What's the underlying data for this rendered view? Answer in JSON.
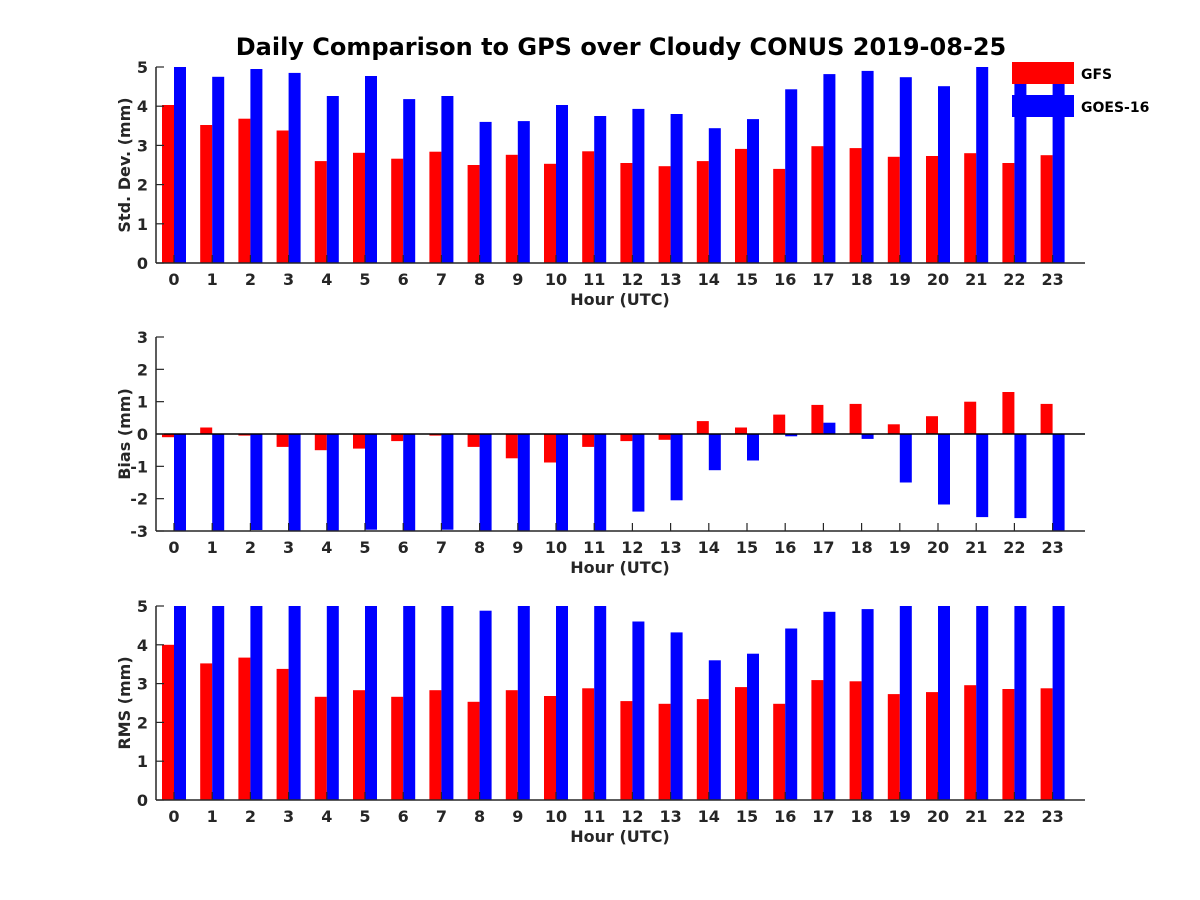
{
  "title": "Daily Comparison to GPS over Cloudy CONUS 2019-08-25",
  "colors": {
    "GFS": "#ff0000",
    "GOES-16": "#0000ff",
    "axis": "#262626"
  },
  "legend": {
    "placement": "top-right",
    "entries": [
      "GFS",
      "GOES-16"
    ]
  },
  "chart_data": [
    {
      "type": "bar",
      "title": "",
      "xlabel": "Hour (UTC)",
      "ylabel": "Std. Dev. (mm)",
      "ylim": [
        0,
        5
      ],
      "yticks": [
        0,
        1,
        2,
        3,
        4,
        5
      ],
      "categories": [
        "0",
        "1",
        "2",
        "3",
        "4",
        "5",
        "6",
        "7",
        "8",
        "9",
        "10",
        "11",
        "12",
        "13",
        "14",
        "15",
        "16",
        "17",
        "18",
        "19",
        "20",
        "21",
        "22",
        "23"
      ],
      "series": [
        {
          "name": "GFS",
          "values": [
            4.03,
            3.52,
            3.68,
            3.38,
            2.6,
            2.81,
            2.66,
            2.84,
            2.5,
            2.76,
            2.53,
            2.85,
            2.55,
            2.47,
            2.6,
            2.91,
            2.4,
            2.98,
            2.93,
            2.71,
            2.73,
            2.8,
            2.55,
            2.75
          ]
        },
        {
          "name": "GOES-16",
          "values": [
            5.0,
            4.75,
            4.95,
            4.85,
            4.26,
            4.77,
            4.18,
            4.26,
            3.6,
            3.62,
            4.03,
            3.75,
            3.93,
            3.8,
            3.44,
            3.67,
            4.43,
            4.82,
            4.9,
            4.74,
            4.51,
            5.0,
            4.58,
            4.6
          ]
        }
      ]
    },
    {
      "type": "bar",
      "title": "",
      "xlabel": "Hour (UTC)",
      "ylabel": "Bias (mm)",
      "ylim": [
        -3,
        3
      ],
      "yticks": [
        -3,
        -2,
        -1,
        0,
        1,
        2,
        3
      ],
      "categories": [
        "0",
        "1",
        "2",
        "3",
        "4",
        "5",
        "6",
        "7",
        "8",
        "9",
        "10",
        "11",
        "12",
        "13",
        "14",
        "15",
        "16",
        "17",
        "18",
        "19",
        "20",
        "21",
        "22",
        "23"
      ],
      "series": [
        {
          "name": "GFS",
          "values": [
            -0.1,
            0.2,
            -0.05,
            -0.4,
            -0.5,
            -0.45,
            -0.22,
            -0.05,
            -0.4,
            -0.75,
            -0.88,
            -0.4,
            -0.22,
            -0.18,
            0.4,
            0.2,
            0.6,
            0.9,
            0.93,
            0.3,
            0.55,
            1.0,
            1.3,
            0.93
          ]
        },
        {
          "name": "GOES-16",
          "values": [
            -3.0,
            -3.0,
            -2.97,
            -3.0,
            -3.0,
            -2.96,
            -3.0,
            -2.96,
            -3.0,
            -3.0,
            -3.0,
            -3.0,
            -2.4,
            -2.05,
            -1.12,
            -0.82,
            -0.07,
            0.35,
            -0.15,
            -1.5,
            -2.18,
            -2.57,
            -2.6,
            -3.0
          ]
        }
      ]
    },
    {
      "type": "bar",
      "title": "",
      "xlabel": "Hour (UTC)",
      "ylabel": "RMS (mm)",
      "ylim": [
        0,
        5
      ],
      "yticks": [
        0,
        1,
        2,
        3,
        4,
        5
      ],
      "categories": [
        "0",
        "1",
        "2",
        "3",
        "4",
        "5",
        "6",
        "7",
        "8",
        "9",
        "10",
        "11",
        "12",
        "13",
        "14",
        "15",
        "16",
        "17",
        "18",
        "19",
        "20",
        "21",
        "22",
        "23"
      ],
      "series": [
        {
          "name": "GFS",
          "values": [
            4.0,
            3.52,
            3.67,
            3.38,
            2.66,
            2.83,
            2.66,
            2.83,
            2.53,
            2.83,
            2.68,
            2.88,
            2.55,
            2.48,
            2.6,
            2.91,
            2.48,
            3.09,
            3.06,
            2.73,
            2.78,
            2.96,
            2.86,
            2.88
          ]
        },
        {
          "name": "GOES-16",
          "values": [
            5.0,
            5.0,
            5.0,
            5.0,
            5.0,
            5.0,
            5.0,
            5.0,
            4.88,
            5.0,
            5.0,
            5.0,
            4.6,
            4.32,
            3.6,
            3.77,
            4.42,
            4.85,
            4.92,
            5.0,
            5.0,
            5.0,
            5.0,
            5.0
          ]
        }
      ]
    }
  ]
}
